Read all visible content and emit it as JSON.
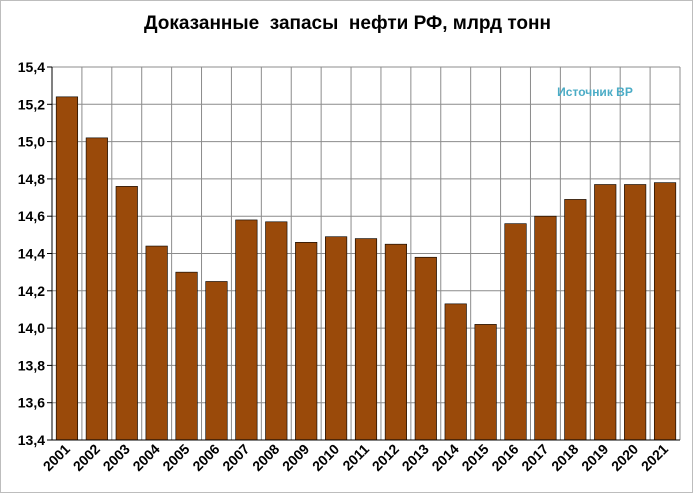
{
  "chart_data": {
    "type": "bar",
    "title": "Доказанные  запасы  нефти РФ, млрд тонн",
    "annotation": "Источник BP",
    "categories": [
      "2001",
      "2002",
      "2003",
      "2004",
      "2005",
      "2006",
      "2007",
      "2008",
      "2009",
      "2010",
      "2011",
      "2012",
      "2013",
      "2014",
      "2015",
      "2016",
      "2017",
      "2018",
      "2019",
      "2020",
      "2021"
    ],
    "values": [
      15.24,
      15.02,
      14.76,
      14.44,
      14.3,
      14.25,
      14.58,
      14.57,
      14.46,
      14.49,
      14.48,
      14.45,
      14.38,
      14.13,
      14.02,
      14.56,
      14.6,
      14.69,
      14.77,
      14.77,
      14.78
    ],
    "ylim": [
      13.4,
      15.4
    ],
    "yticks": [
      "13,4",
      "13,6",
      "13,8",
      "14,0",
      "14,2",
      "14,4",
      "14,6",
      "14,8",
      "15,0",
      "15,2",
      "15,4"
    ],
    "xlabel": "",
    "ylabel": "",
    "grid": true,
    "colors": {
      "bar": "#9a4a0a",
      "bar_stroke": "#000000",
      "grid": "#8c8c8c",
      "annotation": "#4bacc6"
    }
  }
}
